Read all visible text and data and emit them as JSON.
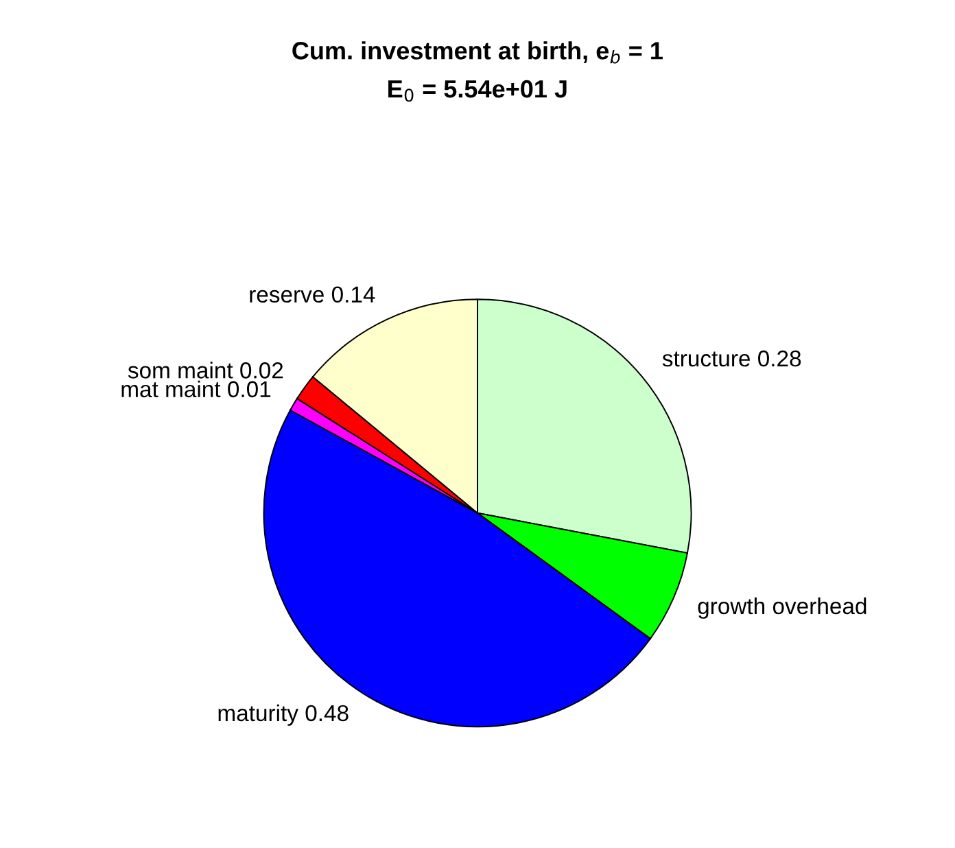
{
  "chart_data": {
    "type": "pie",
    "title": "Cum. investment at birth, e$_{b}$ = 1",
    "subtitle": "E$_{0}$ = 5.54e+01 J",
    "categories": [
      "structure",
      "growth overhead",
      "maturity",
      "mat maint",
      "som maint",
      "reserve"
    ],
    "values": [
      0.28,
      0.07,
      0.48,
      0.01,
      0.02,
      0.14
    ],
    "value_labels": [
      "0.28",
      null,
      "0.48",
      "0.01",
      "0.02",
      "0.14"
    ],
    "colors": [
      "#ccffcc",
      "#00ff00",
      "#0000ff",
      "#ff00ff",
      "#ff0000",
      "#ffffcc"
    ],
    "legend": false
  }
}
